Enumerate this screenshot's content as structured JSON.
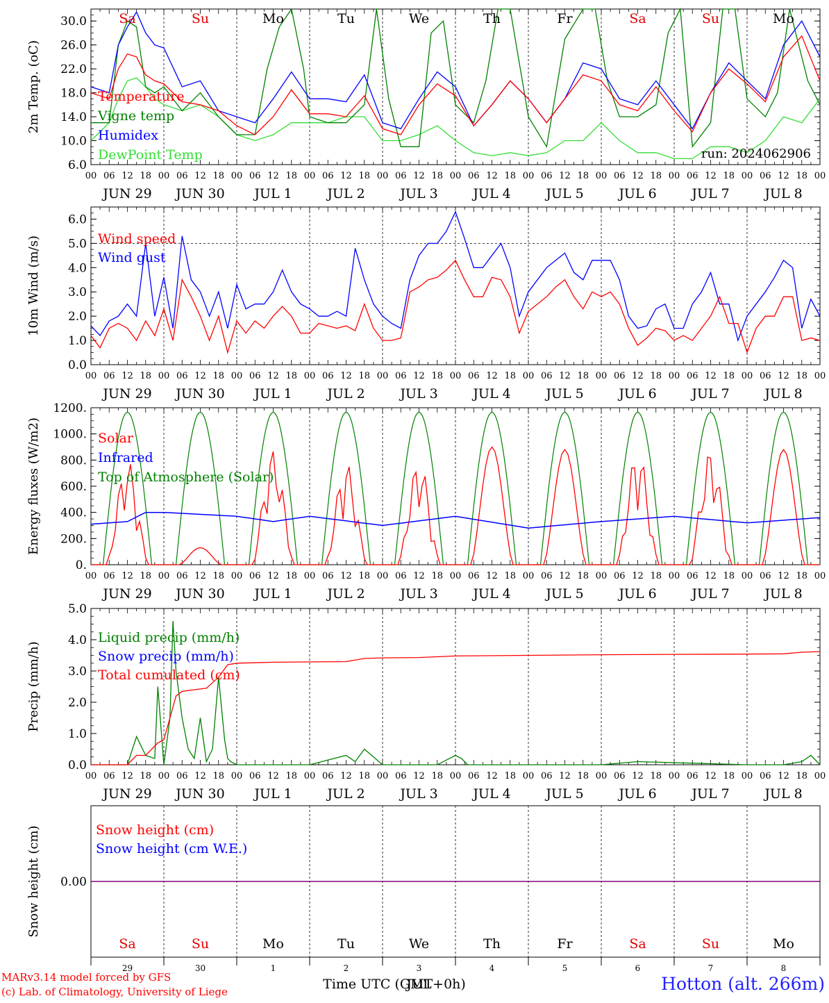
{
  "run_label": "run: 2024062906",
  "x_axis": {
    "hour_ticks": [
      "00",
      "06",
      "12",
      "18"
    ],
    "last_tick": "00",
    "days": [
      "JUN 29",
      "JUN 30",
      "JUL  1",
      "JUL  2",
      "JUL  3",
      "JUL  4",
      "JUL  5",
      "JUL  6",
      "JUL  7",
      "JUL  8"
    ],
    "weekdays": [
      "Sa",
      "Su",
      "Mo",
      "Tu",
      "We",
      "Th",
      "Fr",
      "Sa",
      "Su",
      "Mo"
    ],
    "weekday_colors": [
      "#e00000",
      "#e00000",
      "#000000",
      "#000000",
      "#000000",
      "#000000",
      "#000000",
      "#e00000",
      "#e00000",
      "#000000"
    ],
    "bottom_day_numbers": [
      "29",
      "30",
      "1",
      "2",
      "3",
      "4",
      "5",
      "6",
      "7",
      "8"
    ],
    "bottom_month": "JUL",
    "bottom_title": "Time UTC (GMT+0h)"
  },
  "footer": {
    "credit_line1": "MARv3.14 model forced by GFS",
    "credit_line2": "(c) Lab. of Climatology, University of Liege",
    "station": "Hotton (alt. 266m)"
  },
  "colors": {
    "red": "#ff0000",
    "green": "#008000",
    "blue": "#0000ff",
    "lightgreen": "#33dd33",
    "purple": "#800080"
  },
  "chart_data": [
    {
      "type": "line",
      "ylabel": "2m Temp. (oC)",
      "ylim": [
        6,
        32
      ],
      "yticks": [
        "6.0",
        "10.0",
        "14.0",
        "18.0",
        "22.0",
        "26.0",
        "30.0"
      ],
      "x_unit": "hours since JUN 29 00 UTC",
      "series": [
        {
          "name": "Temperature",
          "color": "#ff0000",
          "x": [
            0,
            6,
            9,
            12,
            15,
            18,
            21,
            24,
            30,
            36,
            42,
            48,
            54,
            60,
            66,
            72,
            78,
            84,
            90,
            96,
            102,
            108,
            114,
            120,
            126,
            132,
            138,
            144,
            150,
            156,
            162,
            168,
            174,
            180,
            186,
            192,
            198,
            204,
            210,
            216,
            222,
            228,
            234,
            240
          ],
          "y": [
            18,
            17,
            22,
            24.5,
            24,
            21,
            20,
            19.5,
            16.5,
            16,
            15,
            12.5,
            11,
            14,
            18.5,
            14.5,
            14.5,
            14,
            17.5,
            12,
            11,
            16,
            19.5,
            17.5,
            12.5,
            16,
            20,
            17,
            13,
            17,
            21,
            20,
            16,
            15,
            19,
            15,
            11.5,
            18,
            22,
            19.5,
            16.5,
            24,
            27.5,
            20
          ]
        },
        {
          "name": "Vigne temp",
          "color": "#008000",
          "x": [
            0,
            6,
            9,
            12,
            15,
            18,
            21,
            24,
            30,
            36,
            42,
            48,
            54,
            58,
            62,
            66,
            70,
            72,
            78,
            84,
            90,
            94,
            98,
            102,
            108,
            112,
            116,
            120,
            126,
            130,
            134,
            138,
            142,
            144,
            150,
            156,
            162,
            166,
            170,
            174,
            180,
            186,
            190,
            194,
            198,
            204,
            208,
            212,
            216,
            222,
            226,
            230,
            236,
            240
          ],
          "y": [
            13,
            13,
            26,
            30,
            29,
            19,
            18,
            19,
            15,
            18,
            14,
            11,
            11,
            22,
            29,
            32,
            22,
            14,
            13,
            13,
            16,
            34,
            17,
            9,
            9,
            28,
            30,
            16,
            13,
            20,
            32,
            32,
            20,
            14,
            9,
            27,
            32,
            32,
            20,
            14,
            14,
            16,
            28,
            32,
            9,
            13,
            32,
            32,
            17,
            14,
            18,
            32,
            20,
            16
          ]
        },
        {
          "name": "Humidex",
          "color": "#0000ff",
          "x": [
            0,
            6,
            9,
            12,
            15,
            18,
            21,
            24,
            30,
            36,
            42,
            48,
            54,
            60,
            66,
            72,
            78,
            84,
            90,
            96,
            102,
            108,
            114,
            120,
            126,
            132,
            138,
            144,
            150,
            156,
            162,
            168,
            174,
            180,
            186,
            192,
            198,
            204,
            210,
            216,
            222,
            228,
            234,
            240
          ],
          "y": [
            19,
            18,
            26,
            29,
            31.5,
            28,
            26,
            25.5,
            19,
            20,
            15,
            14,
            13,
            17,
            21.5,
            17,
            17,
            16.5,
            21,
            13,
            12,
            17,
            21.5,
            19,
            12.5,
            16,
            20,
            17,
            13,
            17,
            23,
            22,
            17,
            16,
            20,
            16,
            12,
            18,
            23,
            20,
            17,
            26,
            30,
            24
          ]
        },
        {
          "name": "DewPoint Temp",
          "color": "#33dd33",
          "x": [
            0,
            6,
            9,
            12,
            15,
            18,
            21,
            24,
            30,
            36,
            42,
            48,
            54,
            60,
            66,
            72,
            78,
            84,
            90,
            96,
            102,
            108,
            114,
            120,
            126,
            132,
            138,
            144,
            150,
            156,
            162,
            168,
            174,
            180,
            186,
            192,
            198,
            204,
            210,
            216,
            222,
            228,
            234,
            240
          ],
          "y": [
            10,
            13,
            17,
            20,
            20.5,
            19,
            17,
            16,
            15,
            16,
            14,
            11,
            10,
            11,
            13,
            13,
            13,
            14,
            14,
            10,
            10,
            11,
            12.5,
            10,
            8,
            7.5,
            8,
            7.5,
            8,
            10,
            10,
            13,
            10,
            8,
            8,
            7,
            7,
            9,
            9,
            8,
            10,
            14,
            13,
            17
          ]
        }
      ]
    },
    {
      "type": "line",
      "ylabel": "10m Wind (m/s)",
      "ylim": [
        0,
        6.5
      ],
      "yticks": [
        "0.0",
        "1.0",
        "2.0",
        "3.0",
        "4.0",
        "5.0",
        "6.0"
      ],
      "reference_line": 5.0,
      "series": [
        {
          "name": "Wind speed",
          "color": "#ff0000",
          "x": [
            0,
            3,
            6,
            9,
            12,
            15,
            18,
            21,
            24,
            27,
            30,
            33,
            36,
            39,
            42,
            45,
            48,
            51,
            54,
            57,
            60,
            63,
            66,
            69,
            72,
            75,
            78,
            81,
            84,
            87,
            90,
            93,
            96,
            99,
            102,
            105,
            108,
            111,
            114,
            117,
            120,
            123,
            126,
            129,
            132,
            135,
            138,
            141,
            144,
            147,
            150,
            153,
            156,
            159,
            162,
            165,
            168,
            171,
            174,
            177,
            180,
            183,
            186,
            189,
            192,
            195,
            198,
            201,
            204,
            207,
            210,
            213,
            216,
            219,
            222,
            225,
            228,
            231,
            234,
            237,
            240
          ],
          "y": [
            1.2,
            0.7,
            1.5,
            1.7,
            1.5,
            1.0,
            1.8,
            1.2,
            2.3,
            1.0,
            3.5,
            2.8,
            2.0,
            1.0,
            2.0,
            0.5,
            1.8,
            1.3,
            1.8,
            1.5,
            2.0,
            2.4,
            2.0,
            1.3,
            1.3,
            1.7,
            1.6,
            1.5,
            1.6,
            1.4,
            2.5,
            1.5,
            1.0,
            1.0,
            1.1,
            3.0,
            3.2,
            3.5,
            3.6,
            3.9,
            4.3,
            3.5,
            2.8,
            2.8,
            3.6,
            3.5,
            2.8,
            1.3,
            2.2,
            2.5,
            2.8,
            3.2,
            3.5,
            2.8,
            2.3,
            3.0,
            2.8,
            3.0,
            2.5,
            1.5,
            0.8,
            1.1,
            1.5,
            1.4,
            1.0,
            1.2,
            1.0,
            1.5,
            2.0,
            2.8,
            1.7,
            1.7,
            0.5,
            1.5,
            2.0,
            2.0,
            2.8,
            2.8,
            1.0,
            1.1,
            1.0
          ]
        },
        {
          "name": "Wind gust",
          "color": "#0000ff",
          "x": [
            0,
            3,
            6,
            9,
            12,
            15,
            18,
            21,
            24,
            27,
            30,
            33,
            36,
            39,
            42,
            45,
            48,
            51,
            54,
            57,
            60,
            63,
            66,
            69,
            72,
            75,
            78,
            81,
            84,
            87,
            90,
            93,
            96,
            99,
            102,
            105,
            108,
            111,
            114,
            117,
            120,
            123,
            126,
            129,
            132,
            135,
            138,
            141,
            144,
            147,
            150,
            153,
            156,
            159,
            162,
            165,
            168,
            171,
            174,
            177,
            180,
            183,
            186,
            189,
            192,
            195,
            198,
            201,
            204,
            207,
            210,
            213,
            216,
            219,
            222,
            225,
            228,
            231,
            234,
            237,
            240
          ],
          "y": [
            1.6,
            1.2,
            1.8,
            2.0,
            2.5,
            2.0,
            5.0,
            2.0,
            3.6,
            1.5,
            5.3,
            3.5,
            3.0,
            2.0,
            3.0,
            1.5,
            3.3,
            2.3,
            2.5,
            2.5,
            3.0,
            3.9,
            3.0,
            2.5,
            2.3,
            2.0,
            2.0,
            2.2,
            2.0,
            4.8,
            3.5,
            2.5,
            2.0,
            1.7,
            1.5,
            3.5,
            4.5,
            5.0,
            5.0,
            5.5,
            6.3,
            5.2,
            4.0,
            4.0,
            4.5,
            5.0,
            4.0,
            2.0,
            3.0,
            3.5,
            4.0,
            4.3,
            4.6,
            3.8,
            3.5,
            4.3,
            4.3,
            4.3,
            3.5,
            2.0,
            1.5,
            1.6,
            2.3,
            2.5,
            1.5,
            1.5,
            2.5,
            3.0,
            3.8,
            2.5,
            2.5,
            1.0,
            2.0,
            2.5,
            3.0,
            3.6,
            4.3,
            4.0,
            1.5,
            2.7,
            2.0
          ]
        }
      ]
    },
    {
      "type": "line",
      "ylabel": "Energy fluxes (W/m2)",
      "ylim": [
        0,
        1200
      ],
      "yticks": [
        "0.",
        "200.",
        "400.",
        "600.",
        "800.",
        "1000.",
        "1200."
      ],
      "series": [
        {
          "name": "Solar",
          "color": "#ff0000",
          "peaks": [
            800,
            130,
            880,
            780,
            800,
            900,
            880,
            880,
            880,
            880
          ],
          "jagged": [
            true,
            false,
            true,
            true,
            true,
            false,
            false,
            true,
            true,
            false
          ]
        },
        {
          "name": "Infrared",
          "color": "#0000ff",
          "x": [
            0,
            12,
            18,
            24,
            48,
            60,
            72,
            96,
            120,
            144,
            168,
            192,
            216,
            240
          ],
          "y": [
            310,
            330,
            400,
            400,
            370,
            330,
            370,
            300,
            370,
            280,
            330,
            370,
            320,
            360
          ]
        },
        {
          "name": "Top of Atmosphere (Solar)",
          "color": "#008000",
          "peak": 1165,
          "sunrise_hour": 4,
          "sunset_hour": 20
        }
      ]
    },
    {
      "type": "line",
      "ylabel": "Precip (mm/h)",
      "ylim": [
        0,
        5
      ],
      "yticks": [
        "0.0",
        "1.0",
        "2.0",
        "3.0",
        "4.0",
        "5.0"
      ],
      "series": [
        {
          "name": "Liquid precip (mm/h)",
          "color": "#008000",
          "x": [
            0,
            12,
            15,
            18,
            21,
            22,
            24,
            26,
            27,
            28,
            30,
            32,
            34,
            36,
            38,
            40,
            42,
            44,
            45,
            46,
            48,
            72,
            84,
            87,
            90,
            96,
            114,
            120,
            122,
            124,
            126,
            168,
            180,
            216,
            228,
            234,
            237,
            240
          ],
          "y": [
            0,
            0,
            0.9,
            0.3,
            0.2,
            2.5,
            0,
            1.5,
            4.6,
            3.0,
            1.5,
            0.5,
            0.2,
            1.5,
            0.1,
            0.5,
            2.8,
            0.8,
            0.2,
            0.1,
            0,
            0,
            0.3,
            0.1,
            0.5,
            0,
            0,
            0.3,
            0.2,
            0,
            0,
            0,
            0.1,
            0,
            0,
            0.1,
            0.3,
            0
          ]
        },
        {
          "name": "Snow precip (mm/h)",
          "color": "#0000ff",
          "x": [
            0,
            240
          ],
          "y": [
            0,
            0
          ]
        },
        {
          "name": "Total cumulated (cm)",
          "color": "#ff0000",
          "x": [
            0,
            12,
            15,
            18,
            22,
            24,
            26,
            28,
            30,
            34,
            38,
            42,
            45,
            48,
            60,
            84,
            90,
            96,
            108,
            120,
            144,
            168,
            192,
            216,
            228,
            234,
            240
          ],
          "y": [
            0,
            0,
            0.3,
            0.3,
            0.7,
            0.8,
            1.5,
            2.2,
            2.35,
            2.4,
            2.45,
            2.8,
            3.2,
            3.25,
            3.28,
            3.3,
            3.4,
            3.42,
            3.43,
            3.48,
            3.5,
            3.52,
            3.53,
            3.54,
            3.55,
            3.6,
            3.62
          ]
        }
      ]
    },
    {
      "type": "line",
      "ylabel": "Snow height (cm)",
      "ylim": [
        -1,
        1
      ],
      "yticks": [
        "0.00"
      ],
      "series": [
        {
          "name": "Snow height (cm)",
          "color": "#ff0000",
          "x": [
            0,
            240
          ],
          "y": [
            0,
            0
          ]
        },
        {
          "name": "Snow height (cm W.E.)",
          "color": "#0000ff",
          "x": [
            0,
            240
          ],
          "y": [
            0,
            0
          ]
        }
      ]
    }
  ]
}
